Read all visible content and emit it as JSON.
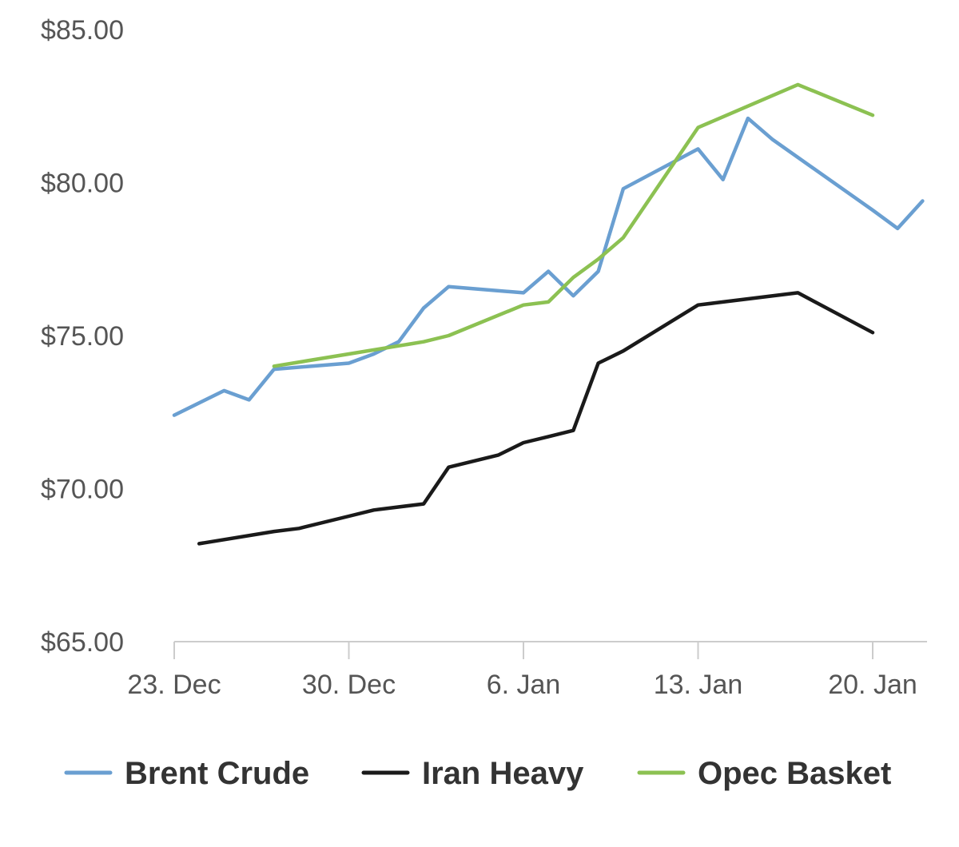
{
  "chart_data": {
    "type": "line",
    "title": "",
    "xlabel": "",
    "ylabel": "",
    "ylim": [
      65,
      85
    ],
    "xlim": [
      "2023-12-23",
      "2024-01-21"
    ],
    "y_ticks": [
      {
        "value": 85,
        "label": "$85.00"
      },
      {
        "value": 80,
        "label": "$80.00"
      },
      {
        "value": 75,
        "label": "$75.00"
      },
      {
        "value": 70,
        "label": "$70.00"
      },
      {
        "value": 65,
        "label": "$65.00"
      }
    ],
    "x_ticks": [
      {
        "value": "2023-12-23",
        "label": "23. Dec"
      },
      {
        "value": "2023-12-30",
        "label": "30. Dec"
      },
      {
        "value": "2024-01-06",
        "label": "6. Jan"
      },
      {
        "value": "2024-01-13",
        "label": "13. Jan"
      },
      {
        "value": "2024-01-20",
        "label": "20. Jan"
      }
    ],
    "grid": {
      "x": false,
      "y": false
    },
    "legend": "bottom",
    "series": [
      {
        "name": "Brent Crude",
        "color": "#6a9fd1",
        "x": [
          "2023-12-23",
          "2023-12-25",
          "2023-12-26",
          "2023-12-27",
          "2023-12-30",
          "2023-12-31",
          "2024-01-01",
          "2024-01-02",
          "2024-01-03",
          "2024-01-06",
          "2024-01-07",
          "2024-01-08",
          "2024-01-09",
          "2024-01-10",
          "2024-01-13",
          "2024-01-14",
          "2024-01-15",
          "2024-01-16",
          "2024-01-20",
          "2024-01-21",
          "2024-01-22"
        ],
        "values": [
          72.4,
          73.2,
          72.9,
          73.9,
          74.1,
          74.4,
          74.8,
          75.9,
          76.6,
          76.4,
          77.1,
          76.3,
          77.1,
          79.8,
          81.1,
          80.1,
          82.1,
          81.4,
          79.1,
          78.5,
          79.4
        ]
      },
      {
        "name": "Iran Heavy",
        "color": "#1a1a1a",
        "x": [
          "2023-12-24",
          "2023-12-27",
          "2023-12-28",
          "2023-12-30",
          "2023-12-31",
          "2024-01-02",
          "2024-01-03",
          "2024-01-05",
          "2024-01-06",
          "2024-01-07",
          "2024-01-08",
          "2024-01-09",
          "2024-01-10",
          "2024-01-13",
          "2024-01-17",
          "2024-01-20"
        ],
        "values": [
          68.2,
          68.6,
          68.7,
          69.1,
          69.3,
          69.5,
          70.7,
          71.1,
          71.5,
          71.7,
          71.9,
          74.1,
          74.5,
          76.0,
          76.4,
          75.1
        ]
      },
      {
        "name": "Opec Basket",
        "color": "#8cc152",
        "x": [
          "2023-12-27",
          "2023-12-30",
          "2024-01-02",
          "2024-01-03",
          "2024-01-06",
          "2024-01-07",
          "2024-01-08",
          "2024-01-09",
          "2024-01-10",
          "2024-01-13",
          "2024-01-17",
          "2024-01-20"
        ],
        "values": [
          74.0,
          74.4,
          74.8,
          75.0,
          76.0,
          76.1,
          76.9,
          77.5,
          78.2,
          81.8,
          83.2,
          82.2
        ]
      }
    ]
  }
}
